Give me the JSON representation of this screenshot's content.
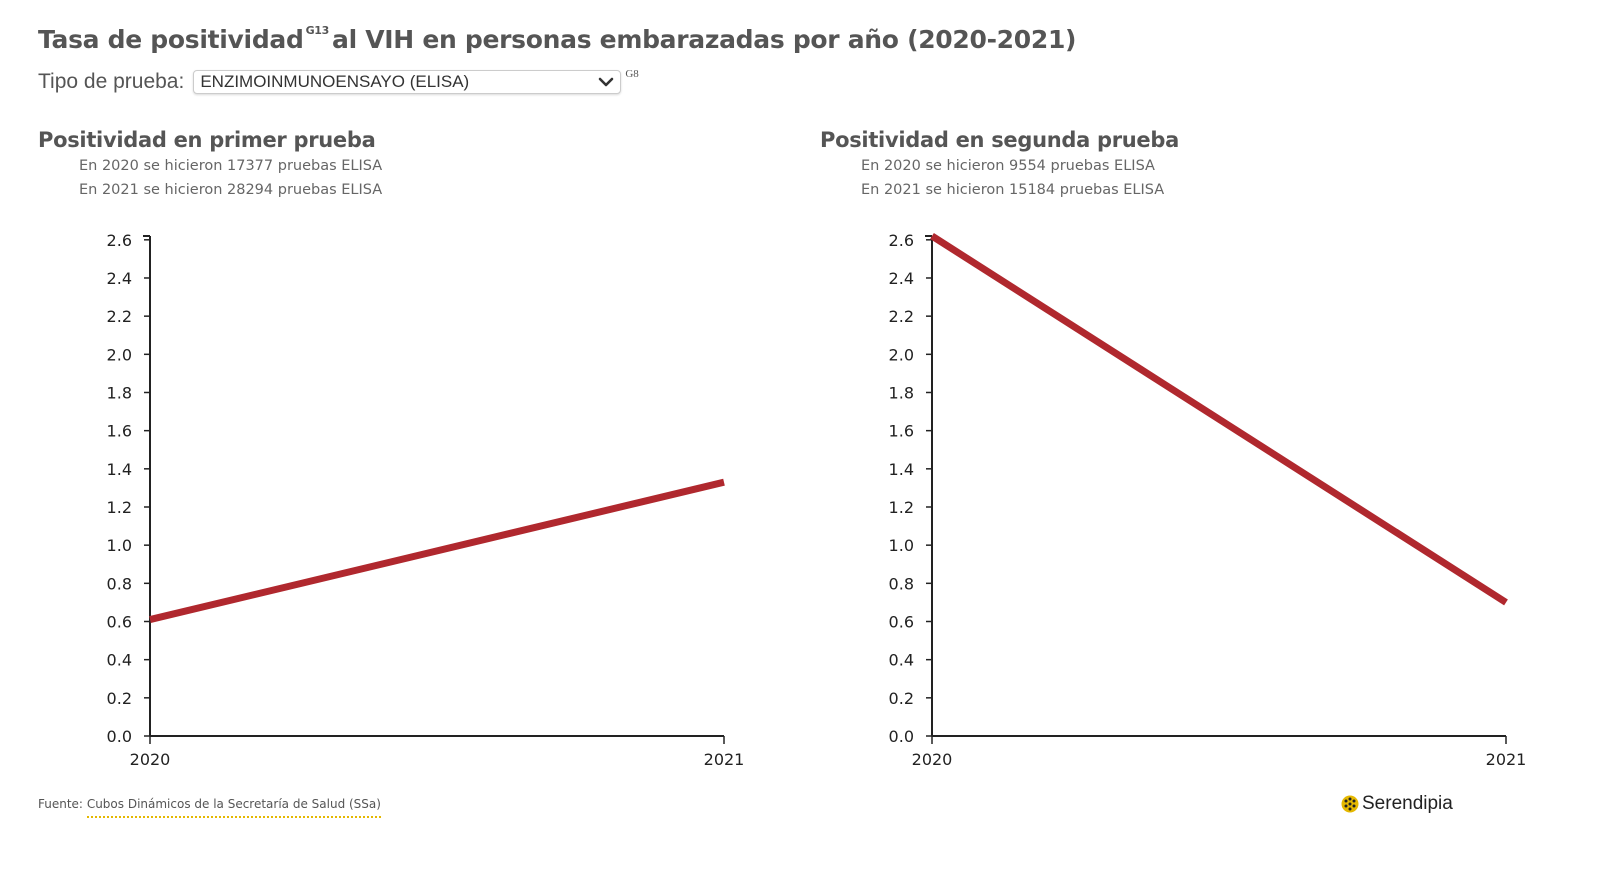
{
  "header": {
    "title_pre": "Tasa de positividad",
    "title_sup": "G13",
    "title_post": "al VIH en personas embarazadas por año (2020-2021)"
  },
  "selector": {
    "label": "Tipo de prueba:",
    "value": "ENZIMOINMUNOENSAYO (ELISA)",
    "sup": "G8"
  },
  "panels": [
    {
      "title": "Positividad en primer prueba",
      "notes": [
        "En 2020 se hicieron 17377 pruebas ELISA",
        "En 2021 se hicieron 28294 pruebas ELISA"
      ]
    },
    {
      "title": "Positividad en segunda prueba",
      "notes": [
        "En 2020 se hicieron 9554 pruebas ELISA",
        "En 2021 se hicieron 15184 pruebas ELISA"
      ]
    }
  ],
  "chart_data": [
    {
      "type": "line",
      "title": "Positividad en primer prueba",
      "x": [
        "2020",
        "2021"
      ],
      "y": [
        0.61,
        1.33
      ],
      "ylim": [
        0,
        2.62
      ],
      "yticks": [
        0.0,
        0.2,
        0.4,
        0.6,
        0.8,
        1.0,
        1.2,
        1.4,
        1.6,
        1.8,
        2.0,
        2.2,
        2.4,
        2.6
      ],
      "ytick_labels": [
        "0.0",
        "0.2",
        "0.4",
        "0.6",
        "0.8",
        "1.0",
        "1.2",
        "1.4",
        "1.6",
        "1.8",
        "2.0",
        "2.2",
        "2.4",
        "2.6"
      ],
      "xtick_labels": [
        "2020",
        "2021"
      ],
      "grid": false,
      "line_color": "#b0282e"
    },
    {
      "type": "line",
      "title": "Positividad en segunda prueba",
      "x": [
        "2020",
        "2021"
      ],
      "y": [
        2.62,
        0.7
      ],
      "ylim": [
        0,
        2.62
      ],
      "yticks": [
        0.0,
        0.2,
        0.4,
        0.6,
        0.8,
        1.0,
        1.2,
        1.4,
        1.6,
        1.8,
        2.0,
        2.2,
        2.4,
        2.6
      ],
      "ytick_labels": [
        "0.0",
        "0.2",
        "0.4",
        "0.6",
        "0.8",
        "1.0",
        "1.2",
        "1.4",
        "1.6",
        "1.8",
        "2.0",
        "2.2",
        "2.4",
        "2.6"
      ],
      "xtick_labels": [
        "2020",
        "2021"
      ],
      "grid": false,
      "line_color": "#b0282e"
    }
  ],
  "footer": {
    "source_label": "Fuente:",
    "source_link": "Cubos Dinámicos de la Secretaría de Salud (SSa)",
    "brand": "Serendipia"
  },
  "colors": {
    "line": "#b0282e",
    "text": "#555555",
    "link_underline": "#e5b800",
    "brand_icon": "#e5b800"
  },
  "icons": {
    "select": "chevron-down-icon",
    "brand": "serendipia-logo-icon"
  }
}
